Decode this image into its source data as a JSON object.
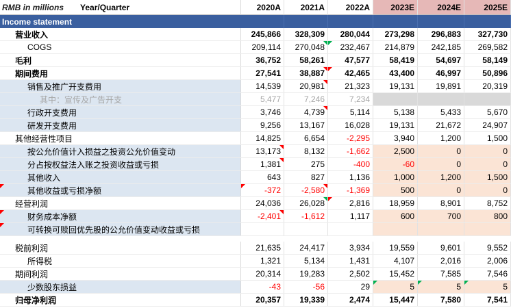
{
  "header": {
    "units": "RMB in millions",
    "period_label": "Year/Quarter",
    "years": [
      "2020A",
      "2021A",
      "2022A",
      "2023E",
      "2024E",
      "2025E"
    ]
  },
  "section_title": "Income statement",
  "rows": [
    {
      "label": "营业收入",
      "values": [
        "245,866",
        "328,309",
        "280,044",
        "273,298",
        "296,883",
        "327,730"
      ]
    },
    {
      "label": "COGS",
      "values": [
        "209,114",
        "270,048",
        "232,467",
        "214,879",
        "242,185",
        "269,582"
      ]
    },
    {
      "label": "毛利",
      "values": [
        "36,752",
        "58,261",
        "47,577",
        "58,419",
        "54,697",
        "58,149"
      ]
    },
    {
      "label": "期间费用",
      "values": [
        "27,541",
        "38,887",
        "42,465",
        "43,400",
        "46,997",
        "50,896"
      ]
    },
    {
      "label": "销售及推广开支费用",
      "values": [
        "14,539",
        "20,981",
        "21,323",
        "19,131",
        "19,891",
        "20,319"
      ]
    },
    {
      "label": "其中：宣传及广告开支",
      "values": [
        "5,477",
        "7,246",
        "7,234",
        "",
        "",
        ""
      ]
    },
    {
      "label": "行政开支费用",
      "values": [
        "3,746",
        "4,739",
        "5,114",
        "5,138",
        "5,433",
        "5,670"
      ]
    },
    {
      "label": "研发开支费用",
      "values": [
        "9,256",
        "13,167",
        "16,028",
        "19,131",
        "21,672",
        "24,907"
      ]
    },
    {
      "label": "其他经营性项目",
      "values": [
        "14,825",
        "6,654",
        "-2,295",
        "3,940",
        "1,200",
        "1,500"
      ]
    },
    {
      "label": "按公允价值计入损益之投资公允价值变动",
      "values": [
        "13,173",
        "8,132",
        "-1,662",
        "2,500",
        "0",
        "0"
      ]
    },
    {
      "label": "分占按权益法入账之投资收益或亏损",
      "values": [
        "1,381",
        "275",
        "-400",
        "-60",
        "0",
        "0"
      ]
    },
    {
      "label": "其他收入",
      "values": [
        "643",
        "827",
        "1,136",
        "1,000",
        "1,200",
        "1,500"
      ]
    },
    {
      "label": "其他收益或亏损净额",
      "values": [
        "-372",
        "-2,580",
        "-1,369",
        "500",
        "0",
        "0"
      ]
    },
    {
      "label": "经营利润",
      "values": [
        "24,036",
        "26,028",
        "2,816",
        "18,959",
        "8,901",
        "8,752"
      ]
    },
    {
      "label": "财务成本净额",
      "values": [
        "-2,401",
        "-1,612",
        "1,117",
        "600",
        "700",
        "800"
      ]
    },
    {
      "label": "可转换可赎回优先股的公允价值变动收益或亏损",
      "values": [
        "",
        "",
        "",
        "",
        "",
        ""
      ]
    },
    {
      "label": "税前利润",
      "values": [
        "21,635",
        "24,417",
        "3,934",
        "19,559",
        "9,601",
        "9,552"
      ]
    },
    {
      "label": "所得税",
      "values": [
        "1,321",
        "5,134",
        "1,431",
        "4,107",
        "2,016",
        "2,006"
      ]
    },
    {
      "label": "期间利润",
      "values": [
        "20,314",
        "19,283",
        "2,502",
        "15,452",
        "7,585",
        "7,546"
      ]
    },
    {
      "label": "少数股东损益",
      "values": [
        "-43",
        "-56",
        "29",
        "5",
        "5",
        "5"
      ]
    },
    {
      "label": "归母净利润",
      "values": [
        "20,357",
        "19,339",
        "2,474",
        "15,447",
        "7,580",
        "7,541"
      ]
    }
  ],
  "colors": {
    "section": "#3a5f9f",
    "estimate_header": "#e6b8b7",
    "input_fill": "#fbe4d5",
    "label_shade": "#dce6f1",
    "negative": "#ff0000"
  }
}
